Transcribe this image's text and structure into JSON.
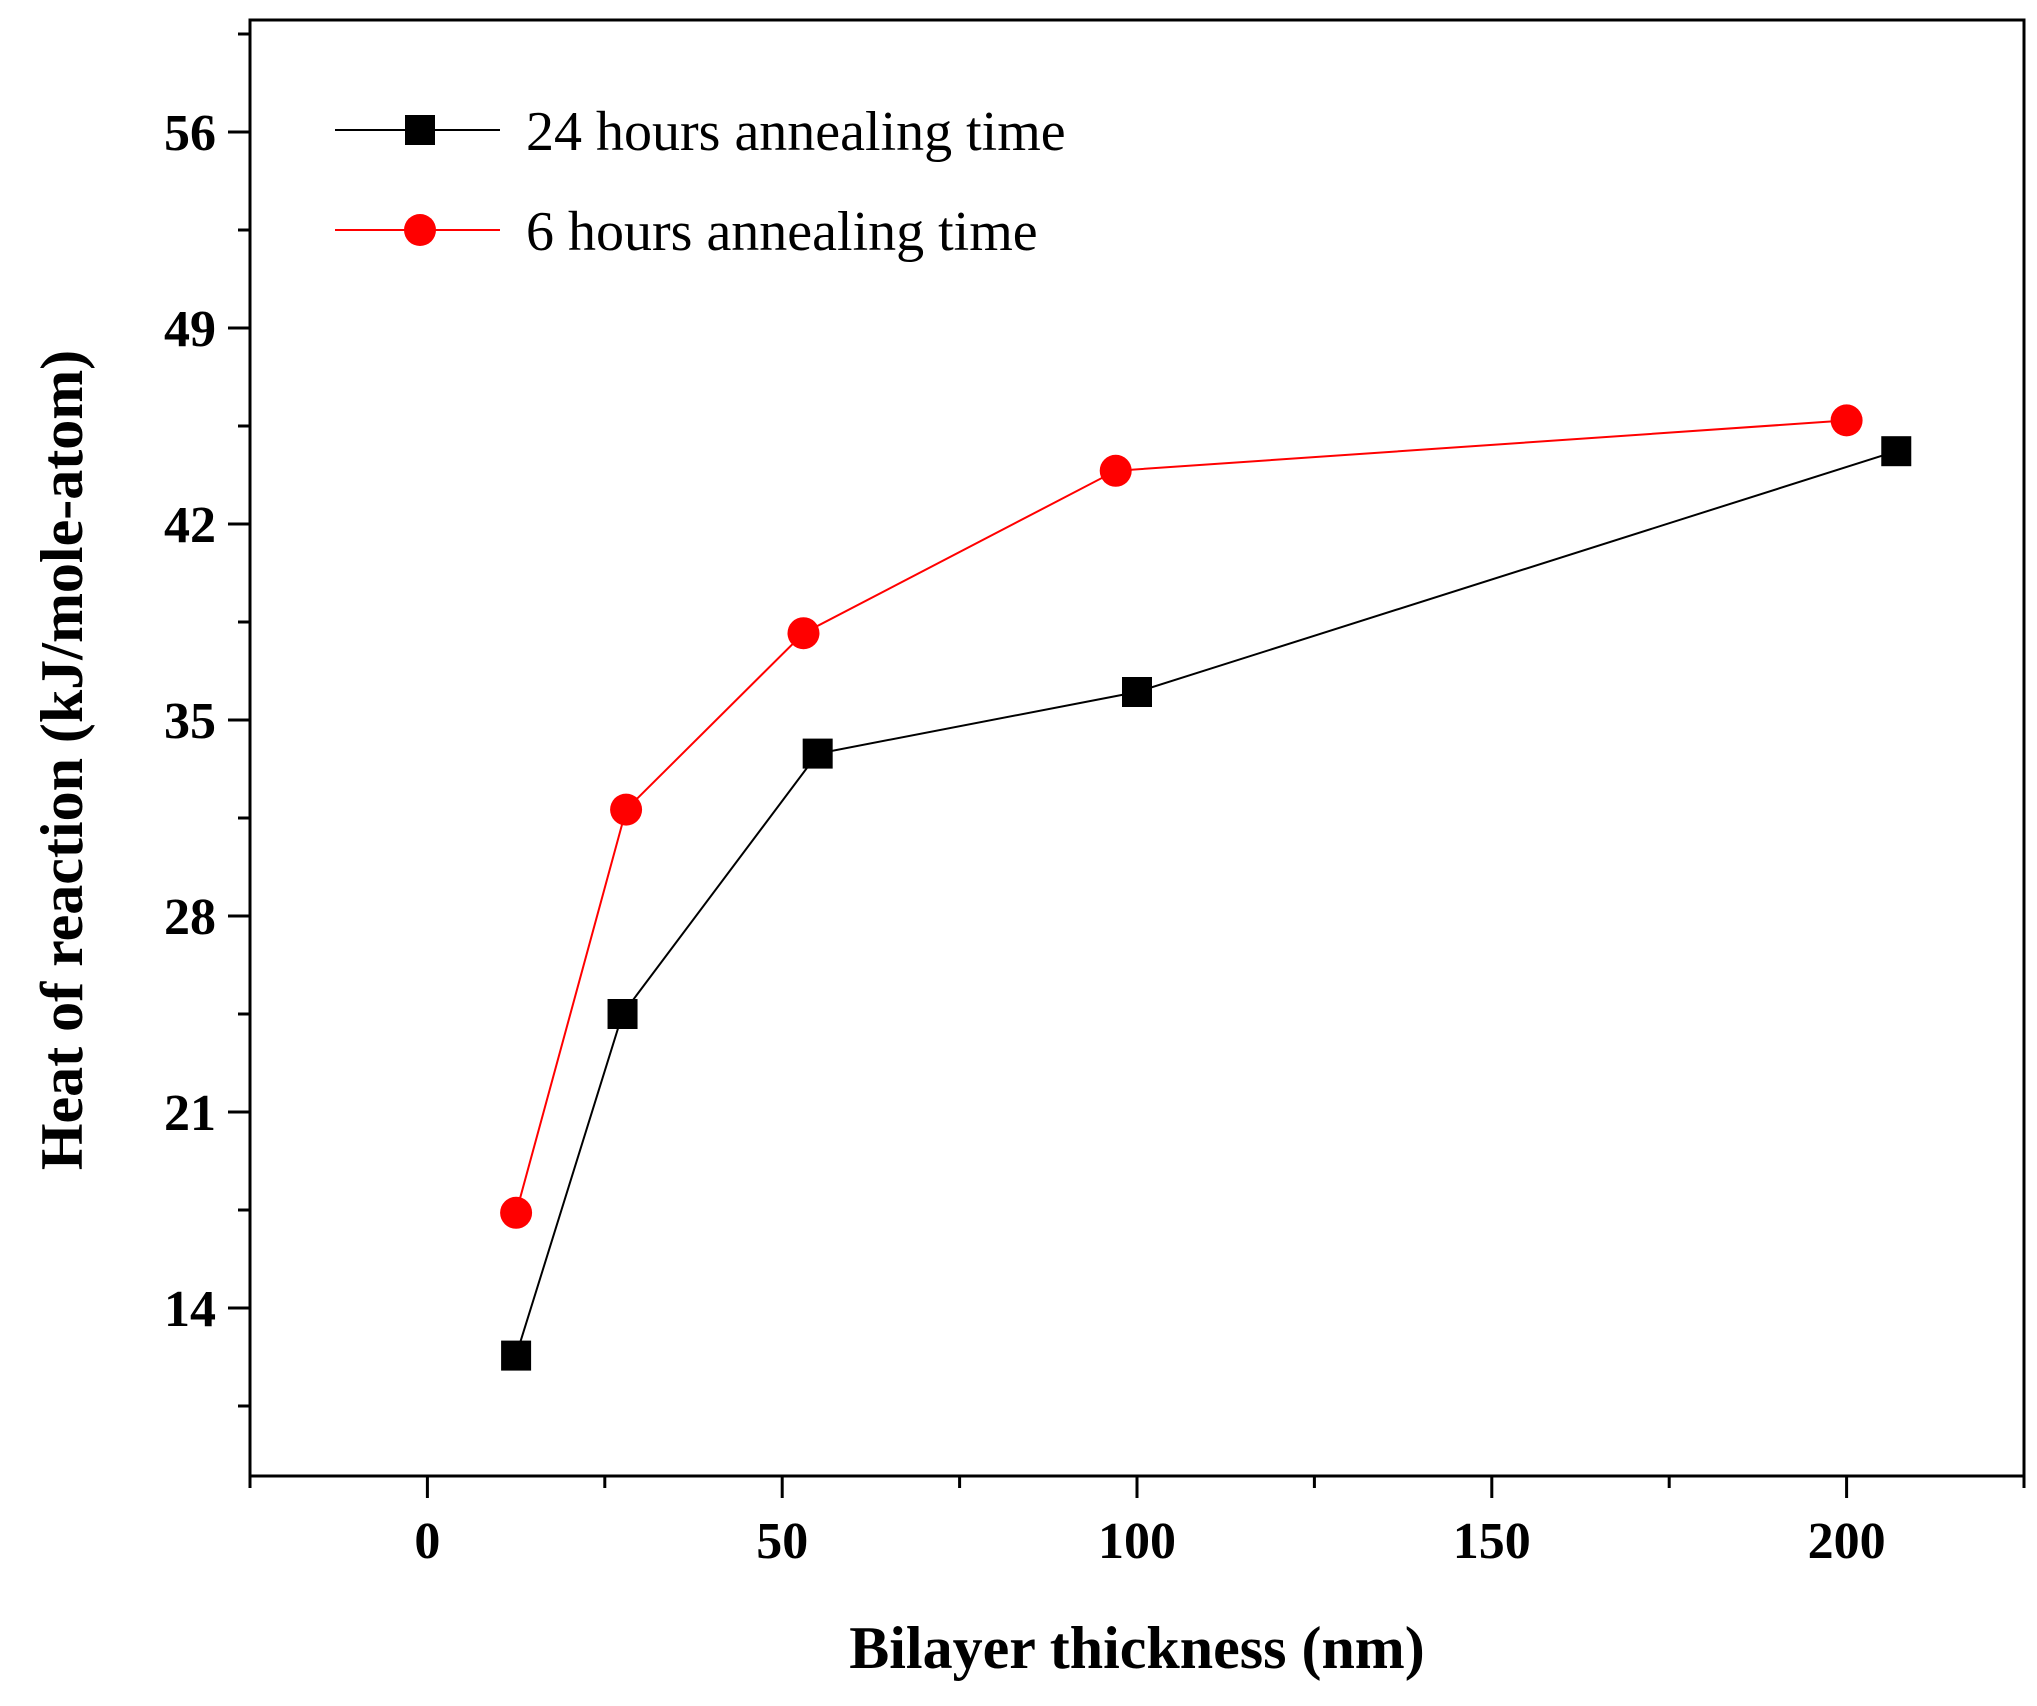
{
  "chart_data": {
    "type": "line",
    "title": "",
    "xlabel": "Bilayer thickness (nm)",
    "ylabel": "Heat of reaction (kJ/mole-atom)",
    "xlim": [
      -25,
      225
    ],
    "ylim": [
      8,
      60
    ],
    "xticks": [
      0,
      50,
      100,
      150,
      200
    ],
    "xtick_labels": [
      "0",
      "50",
      "100",
      "150",
      "200"
    ],
    "yticks": [
      14,
      21,
      28,
      35,
      42,
      49,
      56
    ],
    "ytick_labels": [
      "14",
      "21",
      "28",
      "35",
      "42",
      "49",
      "56"
    ],
    "grid": false,
    "legend_position": "top-left",
    "series": [
      {
        "name": "24 hours annealing time",
        "color": "#000000",
        "marker": "square",
        "x": [
          12.5,
          27.5,
          55,
          100,
          207
        ],
        "y": [
          12.3,
          24.5,
          33.8,
          36.0,
          44.6
        ]
      },
      {
        "name": "6 hours annealing time",
        "color": "#ff0000",
        "marker": "circle",
        "x": [
          12.5,
          28,
          53,
          97,
          200
        ],
        "y": [
          17.4,
          31.8,
          38.1,
          43.9,
          45.7
        ]
      }
    ]
  }
}
